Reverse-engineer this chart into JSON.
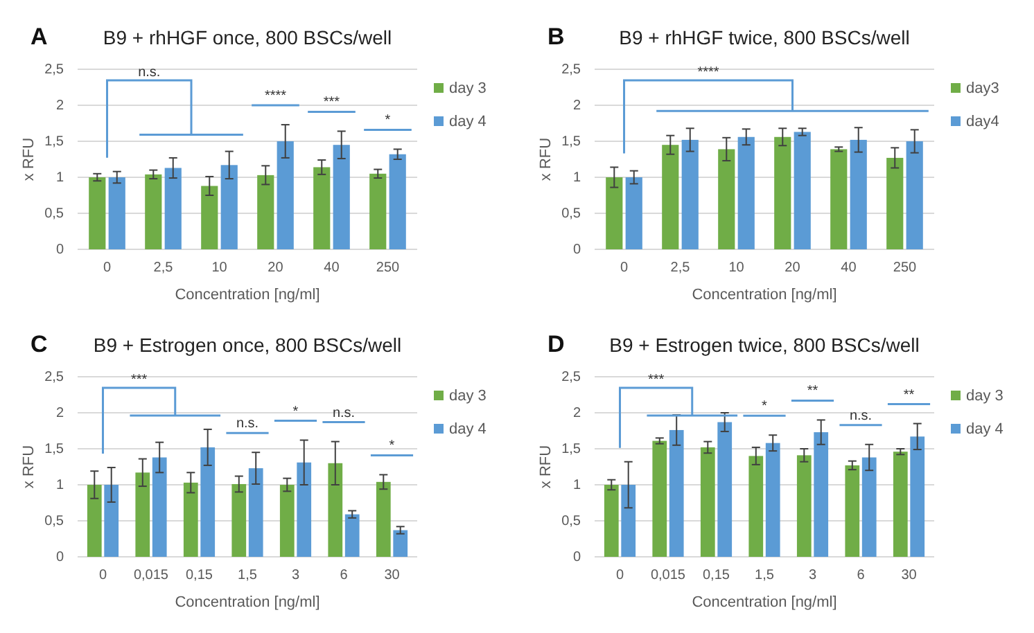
{
  "chart_data": [
    {
      "type": "bar",
      "title": "B9 + rhHGF once, 800 BSCs/well",
      "xlabel": "Concentration [ng/ml]",
      "ylabel": "x RFU",
      "categories": [
        "0",
        "2,5",
        "10",
        "20",
        "40",
        "250"
      ],
      "ylim": [
        0,
        2.5
      ],
      "yticks": [
        0,
        {
          "value": 0.5,
          "label": "0,5"
        },
        1,
        {
          "value": 1.5,
          "label": "1,5"
        },
        2,
        {
          "value": 2.5,
          "label": "2,5"
        }
      ],
      "grid": "y",
      "legend": "right",
      "series": [
        {
          "name": "day 3",
          "color": "#70ad47",
          "values": [
            1.0,
            1.04,
            0.88,
            1.03,
            1.14,
            1.05
          ],
          "errors": [
            0.05,
            0.06,
            0.13,
            0.13,
            0.1,
            0.06
          ]
        },
        {
          "name": "day 4",
          "color": "#5b9bd5",
          "values": [
            1.0,
            1.13,
            1.17,
            1.5,
            1.45,
            1.32
          ],
          "errors": [
            0.08,
            0.14,
            0.19,
            0.23,
            0.19,
            0.07
          ]
        }
      ],
      "annotations": [
        "A",
        "n.s.",
        "****",
        "***",
        "*"
      ]
    },
    {
      "type": "bar",
      "title": "B9 + rhHGF twice, 800 BSCs/well",
      "xlabel": "Concentration [ng/ml]",
      "ylabel": "x RFU",
      "categories": [
        "0",
        "2,5",
        "10",
        "20",
        "40",
        "250"
      ],
      "ylim": [
        0,
        2.5
      ],
      "yticks": [
        0,
        {
          "value": 0.5,
          "label": "0,5"
        },
        1,
        {
          "value": 1.5,
          "label": "1,5"
        },
        2,
        {
          "value": 2.5,
          "label": "2,5"
        }
      ],
      "grid": "y",
      "legend": "right",
      "series": [
        {
          "name": "day3",
          "color": "#70ad47",
          "values": [
            1.0,
            1.45,
            1.39,
            1.56,
            1.39,
            1.27
          ],
          "errors": [
            0.14,
            0.13,
            0.16,
            0.12,
            0.03,
            0.14
          ]
        },
        {
          "name": "day4",
          "color": "#5b9bd5",
          "values": [
            1.0,
            1.52,
            1.56,
            1.63,
            1.52,
            1.5
          ],
          "errors": [
            0.09,
            0.16,
            0.11,
            0.05,
            0.17,
            0.16
          ]
        }
      ],
      "annotations": [
        "B",
        "****"
      ]
    },
    {
      "type": "bar",
      "title": "B9 + Estrogen once, 800 BSCs/well",
      "xlabel": "Concentration [ng/ml]",
      "ylabel": "x RFU",
      "categories": [
        "0",
        "0,015",
        "0,15",
        "1,5",
        "3",
        "6",
        "30"
      ],
      "ylim": [
        0,
        2.5
      ],
      "yticks": [
        0,
        {
          "value": 0.5,
          "label": "0,5"
        },
        1,
        {
          "value": 1.5,
          "label": "1,5"
        },
        2,
        {
          "value": 2.5,
          "label": "2,5"
        }
      ],
      "grid": "y",
      "legend": "right",
      "series": [
        {
          "name": "day 3",
          "color": "#70ad47",
          "values": [
            1.0,
            1.17,
            1.03,
            1.01,
            1.0,
            1.3,
            1.04
          ],
          "errors": [
            0.19,
            0.19,
            0.14,
            0.11,
            0.09,
            0.3,
            0.1
          ]
        },
        {
          "name": "day 4",
          "color": "#5b9bd5",
          "values": [
            1.0,
            1.38,
            1.52,
            1.23,
            1.31,
            0.59,
            0.37
          ],
          "errors": [
            0.24,
            0.21,
            0.25,
            0.22,
            0.31,
            0.05,
            0.05
          ]
        }
      ],
      "annotations": [
        "C",
        "***",
        "n.s.",
        "*",
        "n.s.",
        "*"
      ]
    },
    {
      "type": "bar",
      "title": "B9 + Estrogen twice, 800 BSCs/well",
      "xlabel": "Concentration [ng/ml]",
      "ylabel": "x RFU",
      "categories": [
        "0",
        "0,015",
        "0,15",
        "1,5",
        "3",
        "6",
        "30"
      ],
      "ylim": [
        0,
        2.5
      ],
      "yticks": [
        0,
        {
          "value": 0.5,
          "label": "0,5"
        },
        1,
        {
          "value": 1.5,
          "label": "1,5"
        },
        2,
        {
          "value": 2.5,
          "label": "2,5"
        }
      ],
      "grid": "y",
      "legend": "right",
      "series": [
        {
          "name": "day 3",
          "color": "#70ad47",
          "values": [
            1.0,
            1.61,
            1.52,
            1.4,
            1.41,
            1.27,
            1.46
          ],
          "errors": [
            0.07,
            0.04,
            0.08,
            0.12,
            0.09,
            0.06,
            0.04
          ]
        },
        {
          "name": "day 4",
          "color": "#5b9bd5",
          "values": [
            1.0,
            1.76,
            1.87,
            1.58,
            1.73,
            1.38,
            1.67
          ],
          "errors": [
            0.32,
            0.21,
            0.13,
            0.11,
            0.17,
            0.18,
            0.18
          ]
        }
      ],
      "annotations": [
        "D",
        "***",
        "*",
        "**",
        "n.s.",
        "**"
      ]
    }
  ]
}
